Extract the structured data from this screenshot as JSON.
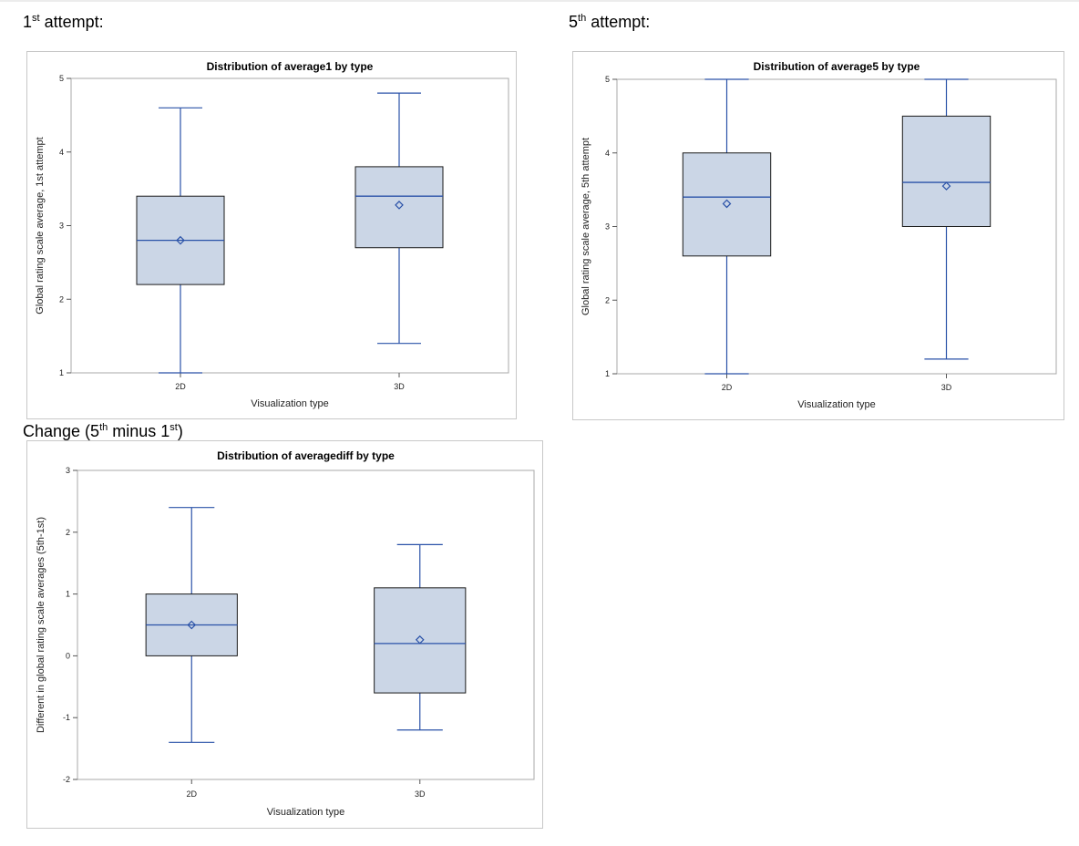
{
  "headings": {
    "first": {
      "pre": "1",
      "sup": "st",
      "post": " attempt:"
    },
    "fifth": {
      "pre": "5",
      "sup": "th",
      "post": " attempt:"
    },
    "change": {
      "pre": "Change (5",
      "sup": "th",
      "mid": " minus 1",
      "sup2": "st",
      "post": ")"
    }
  },
  "colors": {
    "box_fill": "#cbd6e6",
    "box_edge": "#1a1a1a",
    "whisker": "#2a52a8",
    "median": "#2a52a8",
    "mean_marker": "#2a52a8",
    "frame": "#a8a8a8"
  },
  "chart_data": [
    {
      "type": "box",
      "title": "Distribution of average1 by type",
      "xlabel": "Visualization type",
      "ylabel": "Global rating scale average, 1st attempt",
      "categories": [
        "2D",
        "3D"
      ],
      "ylim": [
        1,
        5
      ],
      "yticks": [
        1,
        2,
        3,
        4,
        5
      ],
      "boxes": [
        {
          "category": "2D",
          "min": 1.0,
          "q1": 2.2,
          "median": 2.8,
          "q3": 3.4,
          "max": 4.6,
          "mean": 2.8
        },
        {
          "category": "3D",
          "min": 1.4,
          "q1": 2.7,
          "median": 3.4,
          "q3": 3.8,
          "max": 4.8,
          "mean": 3.28
        }
      ]
    },
    {
      "type": "box",
      "title": "Distribution of average5 by type",
      "xlabel": "Visualization type",
      "ylabel": "Global rating scale average, 5th attempt",
      "categories": [
        "2D",
        "3D"
      ],
      "ylim": [
        1,
        5
      ],
      "yticks": [
        1,
        2,
        3,
        4,
        5
      ],
      "boxes": [
        {
          "category": "2D",
          "min": 1.0,
          "q1": 2.6,
          "median": 3.4,
          "q3": 4.0,
          "max": 5.0,
          "mean": 3.31
        },
        {
          "category": "3D",
          "min": 1.2,
          "q1": 3.0,
          "median": 3.6,
          "q3": 4.5,
          "max": 5.0,
          "mean": 3.55
        }
      ]
    },
    {
      "type": "box",
      "title": "Distribution of averagediff by type",
      "xlabel": "Visualization type",
      "ylabel": "Different in global rating scale averages (5th-1st)",
      "categories": [
        "2D",
        "3D"
      ],
      "ylim": [
        -2,
        3
      ],
      "yticks": [
        -2,
        -1,
        0,
        1,
        2,
        3
      ],
      "boxes": [
        {
          "category": "2D",
          "min": -1.4,
          "q1": 0.0,
          "median": 0.5,
          "q3": 1.0,
          "max": 2.4,
          "mean": 0.5
        },
        {
          "category": "3D",
          "min": -1.2,
          "q1": -0.6,
          "median": 0.2,
          "q3": 1.1,
          "max": 1.8,
          "mean": 0.26
        }
      ]
    }
  ]
}
